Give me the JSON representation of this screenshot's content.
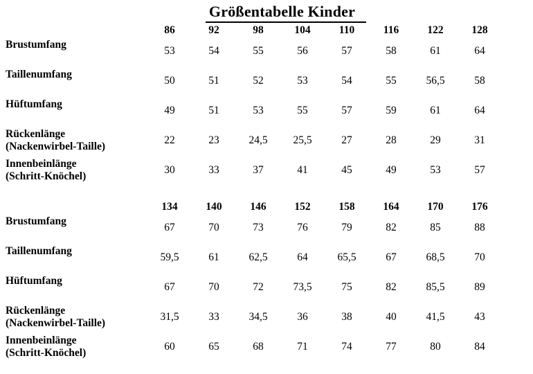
{
  "page": {
    "title": "Größentabelle Kinder"
  },
  "colors": {
    "text": "#000000",
    "background": "#ffffff"
  },
  "table": {
    "sections": [
      {
        "sizes": [
          "86",
          "92",
          "98",
          "104",
          "110",
          "116",
          "122",
          "128"
        ],
        "rows": [
          {
            "label_lines": [
              "Brustumfang"
            ],
            "values": [
              "53",
              "54",
              "55",
              "56",
              "57",
              "58",
              "61",
              "64"
            ]
          },
          {
            "label_lines": [
              "Taillenumfang"
            ],
            "values": [
              "50",
              "51",
              "52",
              "53",
              "54",
              "55",
              "56,5",
              "58"
            ]
          },
          {
            "label_lines": [
              "Hüftumfang"
            ],
            "values": [
              "49",
              "51",
              "53",
              "55",
              "57",
              "59",
              "61",
              "64"
            ]
          },
          {
            "label_lines": [
              "Rückenlänge",
              "(Nackenwirbel-Taille)"
            ],
            "values": [
              "22",
              "23",
              "24,5",
              "25,5",
              "27",
              "28",
              "29",
              "31"
            ]
          },
          {
            "label_lines": [
              "Innenbeinlänge",
              "(Schritt-Knöchel)"
            ],
            "values": [
              "30",
              "33",
              "37",
              "41",
              "45",
              "49",
              "53",
              "57"
            ]
          }
        ]
      },
      {
        "sizes": [
          "134",
          "140",
          "146",
          "152",
          "158",
          "164",
          "170",
          "176"
        ],
        "rows": [
          {
            "label_lines": [
              "Brustumfang"
            ],
            "values": [
              "67",
              "70",
              "73",
              "76",
              "79",
              "82",
              "85",
              "88"
            ]
          },
          {
            "label_lines": [
              "Taillenumfang"
            ],
            "values": [
              "59,5",
              "61",
              "62,5",
              "64",
              "65,5",
              "67",
              "68,5",
              "70"
            ]
          },
          {
            "label_lines": [
              "Hüftumfang"
            ],
            "values": [
              "67",
              "70",
              "72",
              "73,5",
              "75",
              "82",
              "85,5",
              "89"
            ]
          },
          {
            "label_lines": [
              "Rückenlänge",
              "(Nackenwirbel-Taille)"
            ],
            "values": [
              "31,5",
              "33",
              "34,5",
              "36",
              "38",
              "40",
              "41,5",
              "43"
            ]
          },
          {
            "label_lines": [
              "Innenbeinlänge",
              "(Schritt-Knöchel)"
            ],
            "values": [
              "60",
              "65",
              "68",
              "71",
              "74",
              "77",
              "80",
              "84"
            ]
          }
        ]
      }
    ]
  }
}
